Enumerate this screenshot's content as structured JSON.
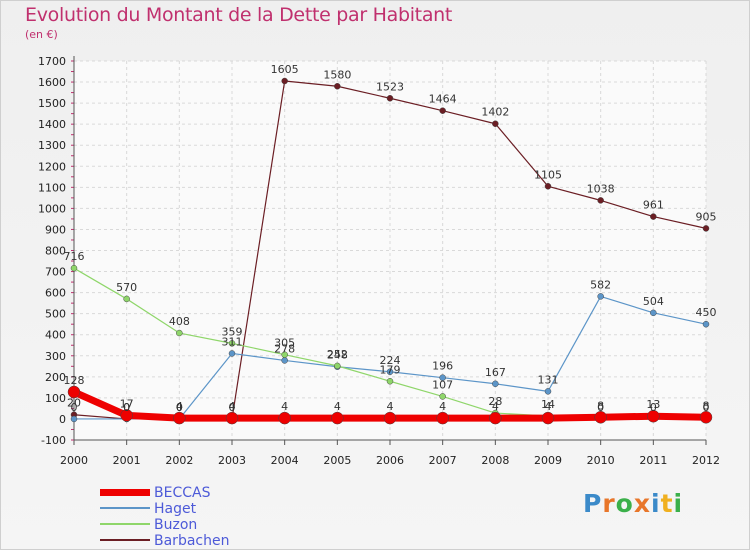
{
  "title": "Evolution du Montant de la Dette par Habitant",
  "subtitle": "(en €)",
  "brand": {
    "letters": [
      "P",
      "r",
      "o",
      "x",
      "i",
      "t",
      "i"
    ],
    "colors": [
      "#3b8ac9",
      "#e8762a",
      "#3bb04a",
      "#e8762a",
      "#3b8ac9",
      "#f0b020",
      "#3bb04a"
    ]
  },
  "chart_data": {
    "type": "line",
    "x": [
      "2000",
      "2001",
      "2002",
      "2003",
      "2004",
      "2005",
      "2006",
      "2007",
      "2008",
      "2009",
      "2010",
      "2011",
      "2012"
    ],
    "ylim": [
      -100,
      1700
    ],
    "yticks": [
      -100,
      0,
      100,
      200,
      300,
      400,
      500,
      600,
      700,
      800,
      900,
      1000,
      1100,
      1200,
      1300,
      1400,
      1500,
      1600,
      1700
    ],
    "grid": true,
    "legend_position": "bottom-left",
    "series": [
      {
        "name": "Barbachen",
        "color": "#6b1e24",
        "width": 1.2,
        "marker": 3,
        "values": [
          20,
          0,
          0,
          0,
          1605,
          1580,
          1523,
          1464,
          1402,
          1105,
          1038,
          961,
          905
        ]
      },
      {
        "name": "Haget",
        "color": "#5c95c8",
        "width": 1.2,
        "marker": 3,
        "values": [
          0,
          0,
          0,
          311,
          278,
          248,
          224,
          196,
          167,
          131,
          582,
          504,
          450
        ]
      },
      {
        "name": "Buzon",
        "color": "#8fd66a",
        "width": 1.2,
        "marker": 3,
        "values": [
          716,
          570,
          408,
          359,
          305,
          252,
          179,
          107,
          28,
          14,
          0,
          0,
          0
        ]
      },
      {
        "name": "BECCAS",
        "color": "#ee0000",
        "width": 7,
        "marker": 6,
        "values": [
          128,
          17,
          4,
          4,
          4,
          4,
          4,
          4,
          4,
          4,
          8,
          13,
          8
        ]
      }
    ],
    "point_labels": [
      [
        "20",
        "0",
        "0",
        "0",
        "1605",
        "1580",
        "1523",
        "1464",
        "1402",
        "1105",
        "1038",
        "961",
        "905"
      ],
      [
        "0",
        "0",
        "0",
        "311",
        "278",
        "248",
        "224",
        "196",
        "167",
        "131",
        "582",
        "504",
        "450"
      ],
      [
        "716",
        "570",
        "408",
        "359",
        "305",
        "252",
        "179",
        "107",
        "28",
        "14",
        "0",
        "0",
        "0"
      ],
      [
        "128",
        "17",
        "4",
        "4",
        "4",
        "4",
        "4",
        "4",
        "4",
        "4",
        "8",
        "13",
        "8"
      ]
    ],
    "legend": [
      "BECCAS",
      "Haget",
      "Buzon",
      "Barbachen"
    ]
  }
}
